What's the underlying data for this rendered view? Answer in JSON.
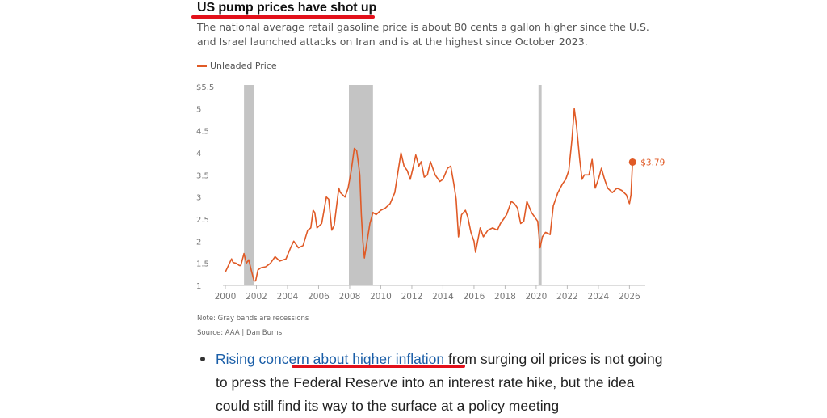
{
  "article": {
    "headline": "US pump prices have shot up",
    "subtitle": "The national average retail gasoline price is about 80 cents a gallon higher since the U.S. and Israel launched attacks on Iran and is at the highest since October 2023.",
    "note": "Note: Gray bands are recessions",
    "source": "Source: AAA | Dan Burns",
    "bullet": {
      "link_text": "Rising concern about higher inflation",
      "text": " from surging oil prices is not going to press the Federal Reserve into an interest rate hike, but the idea could still find its way to the surface at a policy meeting"
    }
  },
  "colors": {
    "line": "#e05a26",
    "recession": "#c4c4c4",
    "highlight_underline": "#e3101a",
    "link": "#1a5ea8"
  },
  "chart_data": {
    "type": "line",
    "title": "US pump prices have shot up",
    "xlabel": "",
    "ylabel": "",
    "xlim": [
      2000,
      2026.5
    ],
    "ylim": [
      1,
      5.5
    ],
    "x_ticks": [
      2000,
      2002,
      2004,
      2006,
      2008,
      2010,
      2012,
      2014,
      2016,
      2018,
      2020,
      2022,
      2024,
      2026
    ],
    "y_ticks": [
      1,
      1.5,
      2,
      2.5,
      3,
      3.5,
      4,
      4.5,
      5,
      5.5
    ],
    "y_tick_labels": [
      "1",
      "1.5",
      "2",
      "2.5",
      "3",
      "3.5",
      "4",
      "4.5",
      "5",
      "$5.5"
    ],
    "grid": false,
    "legend": "top-left",
    "recessions": [
      [
        2001.2,
        2001.85
      ],
      [
        2007.95,
        2009.5
      ],
      [
        2020.15,
        2020.35
      ]
    ],
    "series": [
      {
        "name": "Unleaded Price",
        "x": [
          2000,
          2000.2,
          2000.4,
          2000.5,
          2000.7,
          2000.9,
          2001.0,
          2001.2,
          2001.35,
          2001.5,
          2001.7,
          2001.85,
          2001.95,
          2002.1,
          2002.3,
          2002.6,
          2002.9,
          2003.2,
          2003.5,
          2003.9,
          2004.2,
          2004.4,
          2004.7,
          2005.0,
          2005.3,
          2005.5,
          2005.65,
          2005.75,
          2005.9,
          2006.2,
          2006.5,
          2006.65,
          2006.85,
          2007.0,
          2007.3,
          2007.4,
          2007.7,
          2007.9,
          2008.1,
          2008.3,
          2008.45,
          2008.55,
          2008.65,
          2008.75,
          2008.85,
          2008.95,
          2009.1,
          2009.3,
          2009.5,
          2009.7,
          2010.0,
          2010.3,
          2010.6,
          2010.9,
          2011.1,
          2011.3,
          2011.5,
          2011.7,
          2011.9,
          2012.1,
          2012.25,
          2012.45,
          2012.6,
          2012.8,
          2013.0,
          2013.2,
          2013.5,
          2013.8,
          2014.0,
          2014.3,
          2014.5,
          2014.7,
          2014.85,
          2015.0,
          2015.2,
          2015.45,
          2015.6,
          2015.8,
          2016.0,
          2016.1,
          2016.4,
          2016.6,
          2016.9,
          2017.2,
          2017.5,
          2017.7,
          2017.9,
          2018.1,
          2018.4,
          2018.6,
          2018.8,
          2019.0,
          2019.2,
          2019.4,
          2019.7,
          2019.9,
          2020.1,
          2020.25,
          2020.4,
          2020.6,
          2020.9,
          2021.1,
          2021.4,
          2021.7,
          2021.9,
          2022.1,
          2022.3,
          2022.45,
          2022.6,
          2022.8,
          2022.95,
          2023.1,
          2023.4,
          2023.6,
          2023.8,
          2024.0,
          2024.2,
          2024.4,
          2024.6,
          2024.9,
          2025.2,
          2025.5,
          2025.8,
          2026.0,
          2026.1,
          2026.2
        ],
        "values": [
          1.3,
          1.45,
          1.6,
          1.52,
          1.5,
          1.45,
          1.45,
          1.72,
          1.5,
          1.58,
          1.3,
          1.1,
          1.1,
          1.35,
          1.4,
          1.42,
          1.5,
          1.65,
          1.55,
          1.6,
          1.85,
          2.0,
          1.85,
          1.9,
          2.25,
          2.3,
          2.7,
          2.65,
          2.3,
          2.4,
          3.0,
          2.95,
          2.25,
          2.35,
          3.2,
          3.1,
          3.0,
          3.2,
          3.6,
          4.1,
          4.05,
          3.8,
          3.5,
          2.6,
          2.0,
          1.62,
          1.95,
          2.4,
          2.65,
          2.6,
          2.7,
          2.75,
          2.85,
          3.1,
          3.55,
          4.0,
          3.7,
          3.6,
          3.4,
          3.7,
          3.95,
          3.7,
          3.8,
          3.45,
          3.5,
          3.8,
          3.5,
          3.35,
          3.4,
          3.65,
          3.7,
          3.3,
          2.95,
          2.1,
          2.6,
          2.7,
          2.55,
          2.2,
          2.0,
          1.75,
          2.3,
          2.1,
          2.25,
          2.3,
          2.25,
          2.4,
          2.5,
          2.6,
          2.9,
          2.85,
          2.75,
          2.4,
          2.45,
          2.9,
          2.65,
          2.55,
          2.45,
          1.85,
          2.1,
          2.2,
          2.15,
          2.8,
          3.1,
          3.3,
          3.4,
          3.6,
          4.3,
          5.0,
          4.6,
          3.85,
          3.4,
          3.5,
          3.5,
          3.85,
          3.2,
          3.4,
          3.65,
          3.4,
          3.2,
          3.1,
          3.2,
          3.15,
          3.05,
          2.85,
          3.05,
          3.79
        ]
      }
    ],
    "annotations": [
      {
        "x": 2026.2,
        "y": 3.79,
        "label": "$3.79"
      }
    ]
  }
}
